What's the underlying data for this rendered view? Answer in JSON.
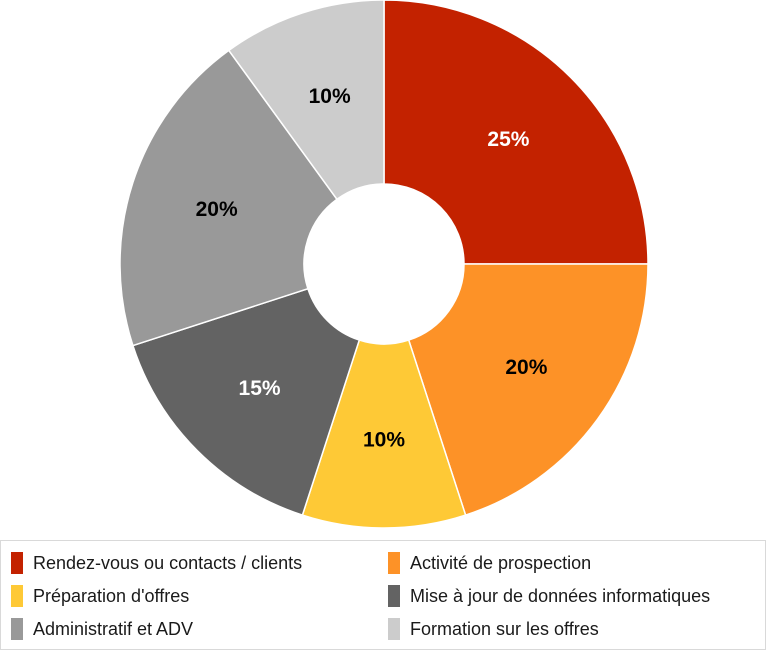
{
  "chart_data": {
    "type": "pie",
    "title": "",
    "donut": true,
    "legend_position": "bottom",
    "categories": [
      "Rendez-vous ou contacts / clients",
      "Activité de prospection",
      "Préparation d'offres",
      "Mise à jour de données informatiques",
      "Administratif et ADV",
      "Formation sur les offres"
    ],
    "values": [
      25,
      20,
      10,
      15,
      20,
      10
    ],
    "labels": [
      "25%",
      "20%",
      "10%",
      "15%",
      "20%",
      "10%"
    ],
    "colors": [
      "#c32200",
      "#fd9227",
      "#fec936",
      "#636363",
      "#999999",
      "#cccccc"
    ],
    "label_colors": [
      "#ffffff",
      "#000000",
      "#000000",
      "#ffffff",
      "#000000",
      "#000000"
    ]
  }
}
